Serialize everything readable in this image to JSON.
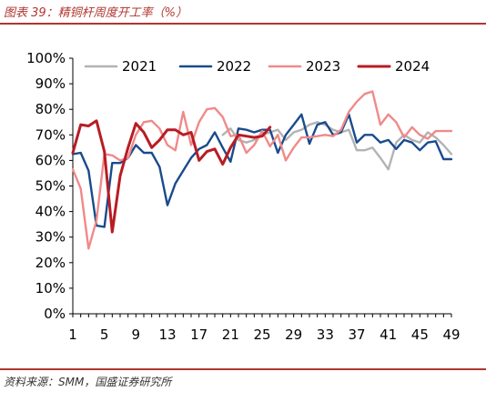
{
  "figure": {
    "title": "图表 39：精铜杆周度开工率（%）",
    "source": "资料来源：SMM，国盛证券研究所"
  },
  "chart_data": {
    "type": "line",
    "x": [
      1,
      2,
      3,
      4,
      5,
      6,
      7,
      8,
      9,
      10,
      11,
      12,
      13,
      14,
      15,
      16,
      17,
      18,
      19,
      20,
      21,
      22,
      23,
      24,
      25,
      26,
      27,
      28,
      29,
      30,
      31,
      32,
      33,
      34,
      35,
      36,
      37,
      38,
      39,
      40,
      41,
      42,
      43,
      44,
      45,
      46,
      47,
      48,
      49
    ],
    "x_ticks": [
      1,
      5,
      9,
      13,
      17,
      21,
      25,
      29,
      33,
      37,
      41,
      45,
      49
    ],
    "y_ticks": [
      0,
      10,
      20,
      30,
      40,
      50,
      60,
      70,
      80,
      90,
      100
    ],
    "y_tick_labels": [
      "0%",
      "10%",
      "20%",
      "30%",
      "40%",
      "50%",
      "60%",
      "70%",
      "80%",
      "90%",
      "100%"
    ],
    "xlim": [
      1,
      49
    ],
    "ylim": [
      0,
      100
    ],
    "grid": false,
    "legend_position": "top",
    "series": [
      {
        "name": "2021",
        "color": "#b3b3b3",
        "values": [
          null,
          null,
          null,
          null,
          null,
          null,
          null,
          null,
          null,
          null,
          null,
          null,
          null,
          null,
          null,
          null,
          null,
          null,
          null,
          70,
          72.5,
          68,
          67,
          68,
          70,
          71,
          72,
          68,
          71,
          72,
          74,
          75,
          74,
          72,
          71,
          72,
          64,
          64,
          65,
          61,
          56.5,
          67,
          70,
          68,
          67,
          71,
          69,
          66,
          62.5
        ]
      },
      {
        "name": "2022",
        "color": "#1a4b8c",
        "values": [
          62.5,
          63,
          56,
          34.5,
          34,
          59,
          59,
          61,
          66,
          63,
          63,
          57.5,
          42.5,
          51,
          56,
          61,
          64.5,
          66,
          71,
          65,
          59.5,
          72.5,
          72,
          71,
          72,
          72,
          63,
          70,
          74,
          78,
          66.5,
          74,
          75,
          70,
          71,
          78,
          67,
          70,
          70,
          67,
          68,
          64.5,
          68,
          67,
          64,
          67,
          67.5,
          60.5,
          60.5
        ]
      },
      {
        "name": "2023",
        "color": "#f08a8a",
        "values": [
          56.5,
          49,
          25.5,
          36.5,
          62.5,
          62,
          60,
          61,
          70,
          75,
          75.5,
          72.5,
          66,
          64,
          79,
          66,
          75,
          80,
          80.5,
          77,
          69.5,
          70,
          63,
          66,
          71.5,
          65.5,
          70,
          60,
          65,
          69,
          69,
          69.5,
          70,
          69.5,
          72,
          79,
          83,
          86,
          87,
          74,
          78,
          75,
          69,
          73,
          70,
          68.5,
          71.5,
          71.5,
          71.5
        ]
      },
      {
        "name": "2024",
        "color": "#b81c23",
        "values": [
          63,
          74,
          73.5,
          75.5,
          63.5,
          32,
          54,
          65,
          74.5,
          71,
          65,
          68,
          72,
          72,
          70,
          71,
          60,
          63.5,
          64.5,
          58.5,
          65,
          70,
          69.5,
          69,
          69.5,
          73,
          null,
          null,
          null,
          null,
          null,
          null,
          null,
          null,
          null,
          null,
          null,
          null,
          null,
          null,
          null,
          null,
          null,
          null,
          null,
          null,
          null,
          null,
          null
        ]
      }
    ]
  }
}
